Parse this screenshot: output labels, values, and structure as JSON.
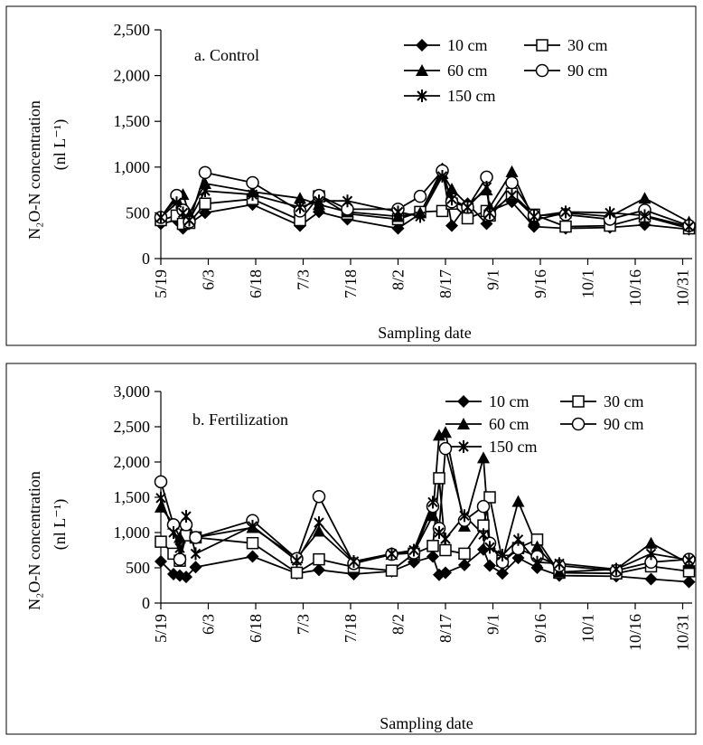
{
  "chart_data": [
    {
      "type": "line",
      "panel_label": "a. Control",
      "ylabel_line1": "N₂O-N concentration",
      "ylabel_line2": "(nl L⁻¹)",
      "xlabel": "Sampling date",
      "ylim": [
        0,
        2500
      ],
      "yticks": [
        0,
        500,
        1000,
        1500,
        2000,
        2500
      ],
      "ytick_labels": [
        "0",
        "500",
        "1,000",
        "1,500",
        "2,000",
        "2,500"
      ],
      "xlim": [
        0,
        168
      ],
      "xticks": [
        0,
        15,
        30,
        45,
        60,
        75,
        90,
        105,
        120,
        135,
        150,
        165
      ],
      "xtick_labels": [
        "5/19",
        "6/3",
        "6/18",
        "7/3",
        "7/18",
        "8/2",
        "8/17",
        "9/1",
        "9/16",
        "10/1",
        "10/16",
        "10/31"
      ],
      "x": [
        0,
        5,
        7,
        9,
        14,
        29,
        44,
        50,
        59,
        75,
        82,
        89,
        92,
        97,
        103,
        104,
        111,
        118,
        128,
        142,
        153,
        167
      ],
      "series": [
        {
          "name": "10 cm",
          "marker": "diamond",
          "values": [
            380,
            420,
            330,
            380,
            500,
            590,
            360,
            510,
            430,
            330,
            490,
            980,
            360,
            600,
            380,
            520,
            620,
            350,
            330,
            340,
            370,
            320
          ]
        },
        {
          "name": "30 cm",
          "marker": "square",
          "values": [
            420,
            470,
            380,
            390,
            600,
            650,
            420,
            680,
            490,
            430,
            510,
            520,
            600,
            440,
            520,
            470,
            710,
            480,
            350,
            360,
            460,
            330
          ]
        },
        {
          "name": "60 cm",
          "marker": "triangle",
          "values": [
            460,
            650,
            700,
            490,
            820,
            730,
            660,
            590,
            510,
            460,
            500,
            930,
            760,
            590,
            750,
            560,
            950,
            420,
            500,
            460,
            660,
            400
          ]
        },
        {
          "name": "90 cm",
          "marker": "circle",
          "values": [
            450,
            690,
            530,
            400,
            940,
            830,
            520,
            690,
            540,
            540,
            680,
            960,
            620,
            560,
            890,
            480,
            830,
            470,
            480,
            430,
            530,
            360
          ]
        },
        {
          "name": "150 cm",
          "marker": "asterisk",
          "values": [
            450,
            610,
            500,
            420,
            740,
            700,
            560,
            630,
            630,
            510,
            460,
            900,
            650,
            560,
            780,
            500,
            690,
            460,
            510,
            500,
            470,
            350
          ]
        }
      ]
    },
    {
      "type": "line",
      "panel_label": "b. Fertilization",
      "ylabel_line1": "N₂O-N concentration",
      "ylabel_line2": "(nl L⁻¹)",
      "xlabel": "Sampling date",
      "ylim": [
        0,
        3000
      ],
      "yticks": [
        0,
        500,
        1000,
        1500,
        2000,
        2500,
        3000
      ],
      "ytick_labels": [
        "0",
        "500",
        "1,000",
        "1,500",
        "2,000",
        "2,500",
        "3,000"
      ],
      "xlim": [
        0,
        168
      ],
      "xticks": [
        0,
        15,
        30,
        45,
        60,
        75,
        90,
        105,
        120,
        135,
        150,
        165
      ],
      "xtick_labels": [
        "5/19",
        "6/3",
        "6/18",
        "7/3",
        "7/18",
        "8/2",
        "8/17",
        "9/1",
        "9/16",
        "10/1",
        "10/16",
        "10/31"
      ],
      "x": [
        0,
        4,
        6,
        8,
        11,
        29,
        43,
        50,
        61,
        73,
        80,
        86,
        88,
        90,
        96,
        102,
        104,
        108,
        113,
        119,
        126,
        144,
        155,
        167
      ],
      "series": [
        {
          "name": "10 cm",
          "marker": "diamond",
          "values": [
            590,
            410,
            390,
            370,
            510,
            660,
            420,
            470,
            410,
            450,
            580,
            660,
            400,
            430,
            540,
            760,
            530,
            420,
            640,
            500,
            390,
            380,
            340,
            300
          ]
        },
        {
          "name": "30 cm",
          "marker": "square",
          "values": [
            870,
            700,
            600,
            960,
            930,
            850,
            430,
            620,
            510,
            460,
            700,
            810,
            1770,
            750,
            700,
            1100,
            1500,
            600,
            780,
            900,
            430,
            420,
            520,
            450
          ]
        },
        {
          "name": "60 cm",
          "marker": "triangle",
          "values": [
            1360,
            1120,
            930,
            1100,
            930,
            1070,
            640,
            1020,
            570,
            690,
            720,
            1240,
            2380,
            2420,
            1090,
            2060,
            840,
            600,
            1440,
            800,
            440,
            480,
            850,
            560
          ]
        },
        {
          "name": "90 cm",
          "marker": "circle",
          "values": [
            1720,
            1110,
            620,
            1110,
            930,
            1170,
            630,
            1510,
            560,
            690,
            710,
            1370,
            1060,
            2190,
            1170,
            1370,
            850,
            580,
            770,
            660,
            530,
            460,
            580,
            620
          ]
        },
        {
          "name": "150 cm",
          "marker": "asterisk",
          "values": [
            1490,
            1000,
            780,
            1230,
            700,
            1090,
            600,
            1140,
            590,
            700,
            750,
            1430,
            1000,
            910,
            1240,
            970,
            790,
            680,
            900,
            580,
            560,
            480,
            700,
            610
          ]
        }
      ]
    }
  ]
}
